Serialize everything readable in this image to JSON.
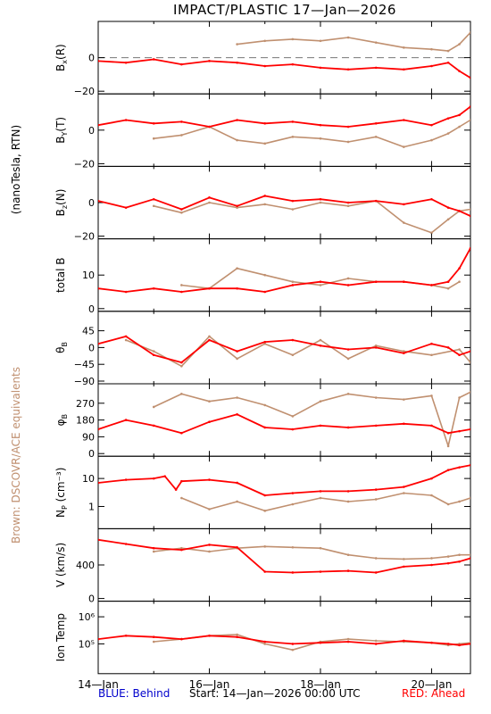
{
  "title": "IMPACT/PLASTIC   17—Jan—2026",
  "colors": {
    "ahead": "#ff0000",
    "equivalent": "#c09070",
    "behind": "#0000cc",
    "frame": "#000000"
  },
  "side_labels": {
    "units": "(nanoTesla, RTN)",
    "brown": "Brown: DSCOVR/ACE equivalents"
  },
  "footer": {
    "behind": "BLUE: Behind",
    "start": "Start: 14—Jan—2026 00:00 UTC",
    "ahead": "RED: Ahead"
  },
  "chart_data": {
    "type": "line",
    "x_tick_labels": [
      "14—Jan",
      "16—Jan",
      "18—Jan",
      "20—Jan"
    ],
    "x_range_days": [
      0,
      6.7
    ],
    "panels": [
      {
        "ylabel": "Bx(R)",
        "ylabel_main": "B",
        "ylabel_sub": "x",
        "ylabel_tail": "(R)",
        "ylim": [
          -20,
          20
        ],
        "scale": "linear",
        "ticks": [
          {
            "v": 0,
            "label": "0"
          },
          {
            "v": -20,
            "label": "−20"
          }
        ],
        "zero_line": true,
        "series": [
          {
            "color": "ahead",
            "x": [
              0,
              0.5,
              1,
              1.5,
              2,
              2.5,
              3,
              3.5,
              4,
              4.5,
              5,
              5.5,
              6,
              6.3,
              6.5,
              6.7
            ],
            "y": [
              -2,
              -3,
              -1,
              -4,
              -2,
              -3,
              -5,
              -4,
              -6,
              -7,
              -6,
              -7,
              -5,
              -3,
              -8,
              -12
            ]
          },
          {
            "color": "equivalent",
            "x": [
              2.5,
              3,
              3.5,
              4,
              4.5,
              5,
              5.5,
              6,
              6.3,
              6.5,
              6.7
            ],
            "y": [
              8,
              10,
              11,
              10,
              12,
              9,
              6,
              5,
              4,
              8,
              15
            ]
          }
        ]
      },
      {
        "ylabel": "By(T)",
        "ylabel_main": "B",
        "ylabel_sub": "Y",
        "ylabel_tail": "(T)",
        "ylim": [
          -20,
          20
        ],
        "scale": "linear",
        "ticks": [
          {
            "v": 0,
            "label": "0"
          },
          {
            "v": -20,
            "label": "−20"
          }
        ],
        "series": [
          {
            "color": "ahead",
            "x": [
              0,
              0.5,
              1,
              1.5,
              2,
              2.5,
              3,
              3.5,
              4,
              4.5,
              5,
              5.5,
              6,
              6.3,
              6.5,
              6.7
            ],
            "y": [
              3,
              6,
              4,
              5,
              2,
              6,
              4,
              5,
              3,
              2,
              4,
              6,
              3,
              7,
              9,
              14
            ]
          },
          {
            "color": "equivalent",
            "x": [
              1,
              1.5,
              2,
              2.5,
              3,
              3.5,
              4,
              4.5,
              5,
              5.5,
              6,
              6.3,
              6.5,
              6.7
            ],
            "y": [
              -5,
              -3,
              2,
              -6,
              -8,
              -4,
              -5,
              -7,
              -4,
              -10,
              -6,
              -2,
              2,
              6
            ]
          }
        ]
      },
      {
        "ylabel": "Bz(N)",
        "ylabel_main": "B",
        "ylabel_sub": "z",
        "ylabel_tail": "(N)",
        "ylim": [
          -20,
          20
        ],
        "scale": "linear",
        "ticks": [
          {
            "v": 0,
            "label": "0"
          },
          {
            "v": -20,
            "label": "−20"
          }
        ],
        "series": [
          {
            "color": "ahead",
            "x": [
              0,
              0.5,
              1,
              1.5,
              2,
              2.5,
              3,
              3.5,
              4,
              4.5,
              5,
              5.5,
              6,
              6.3,
              6.5,
              6.7
            ],
            "y": [
              1,
              -3,
              2,
              -4,
              3,
              -2,
              4,
              1,
              2,
              0,
              1,
              -1,
              2,
              -3,
              -5,
              -8
            ]
          },
          {
            "color": "equivalent",
            "x": [
              1,
              1.5,
              2,
              2.5,
              3,
              3.5,
              4,
              4.5,
              5,
              5.5,
              6,
              6.3,
              6.5,
              6.7
            ],
            "y": [
              -2,
              -6,
              0,
              -3,
              -1,
              -4,
              0,
              -2,
              1,
              -12,
              -18,
              -10,
              -5,
              -4
            ]
          }
        ]
      },
      {
        "ylabel": "total B",
        "ylim": [
          0,
          20
        ],
        "scale": "linear",
        "ticks": [
          {
            "v": 10,
            "label": "10"
          },
          {
            "v": 0,
            "label": "0"
          }
        ],
        "series": [
          {
            "color": "ahead",
            "x": [
              0,
              0.5,
              1,
              1.5,
              2,
              2.5,
              3,
              3.5,
              4,
              4.5,
              5,
              5.5,
              6,
              6.3,
              6.5,
              6.7
            ],
            "y": [
              6,
              5,
              6,
              5,
              6,
              6,
              5,
              7,
              8,
              7,
              8,
              8,
              7,
              8,
              12,
              18
            ]
          },
          {
            "color": "equivalent",
            "x": [
              1.5,
              2,
              2.5,
              3,
              3.5,
              4,
              4.5,
              5,
              5.5,
              6,
              6.3,
              6.5
            ],
            "y": [
              7,
              6,
              12,
              10,
              8,
              7,
              9,
              8,
              8,
              7,
              6,
              8
            ]
          }
        ]
      },
      {
        "ylabel": "θB",
        "ylabel_main": "θ",
        "ylabel_sub": "B",
        "ylabel_tail": "",
        "ylim": [
          -90,
          90
        ],
        "scale": "linear",
        "ticks": [
          {
            "v": 45,
            "label": "45"
          },
          {
            "v": 0,
            "label": "0"
          },
          {
            "v": -45,
            "label": "−45"
          },
          {
            "v": -90,
            "label": "−90"
          }
        ],
        "series": [
          {
            "color": "ahead",
            "x": [
              0,
              0.5,
              1,
              1.5,
              2,
              2.5,
              3,
              3.5,
              4,
              4.5,
              5,
              5.5,
              6,
              6.3,
              6.5,
              6.7
            ],
            "y": [
              10,
              30,
              -20,
              -40,
              20,
              -10,
              15,
              20,
              5,
              -5,
              0,
              -15,
              10,
              0,
              -20,
              -10
            ]
          },
          {
            "color": "equivalent",
            "x": [
              0.5,
              1,
              1.5,
              2,
              2.5,
              3,
              3.5,
              4,
              4.5,
              5,
              5.5,
              6,
              6.5,
              6.7
            ],
            "y": [
              20,
              -10,
              -50,
              30,
              -30,
              10,
              -20,
              20,
              -30,
              5,
              -10,
              -20,
              -5,
              -40
            ]
          }
        ]
      },
      {
        "ylabel": "φB",
        "ylabel_main": "φ",
        "ylabel_sub": "B",
        "ylabel_tail": "",
        "ylim": [
          0,
          360
        ],
        "scale": "linear",
        "ticks": [
          {
            "v": 270,
            "label": "270"
          },
          {
            "v": 180,
            "label": "180"
          },
          {
            "v": 90,
            "label": "90"
          },
          {
            "v": 0,
            "label": "0"
          }
        ],
        "series": [
          {
            "color": "ahead",
            "x": [
              0,
              0.5,
              1,
              1.5,
              2,
              2.5,
              3,
              3.5,
              4,
              4.5,
              5,
              5.5,
              6,
              6.3,
              6.5,
              6.7
            ],
            "y": [
              130,
              180,
              150,
              110,
              170,
              210,
              140,
              130,
              150,
              140,
              150,
              160,
              150,
              110,
              120,
              130
            ]
          },
          {
            "color": "equivalent",
            "x": [
              1,
              1.5,
              2,
              2.5,
              3,
              3.5,
              4,
              4.5,
              5,
              5.5,
              6,
              6.3,
              6.5,
              6.7
            ],
            "y": [
              250,
              320,
              280,
              300,
              260,
              200,
              280,
              320,
              300,
              290,
              310,
              40,
              300,
              330
            ]
          }
        ]
      },
      {
        "ylabel": "Np (cm⁻³)",
        "ylabel_main": "N",
        "ylabel_sub": "P",
        "ylabel_tail": " (cm⁻³)",
        "ylim": [
          0.2,
          50
        ],
        "scale": "log",
        "ticks": [
          {
            "v": 10,
            "label": "10"
          },
          {
            "v": 1,
            "label": "1"
          }
        ],
        "series": [
          {
            "color": "ahead",
            "x": [
              0,
              0.5,
              1,
              1.2,
              1.4,
              1.5,
              2,
              2.5,
              3,
              3.5,
              4,
              4.5,
              5,
              5.5,
              6,
              6.3,
              6.5,
              6.7
            ],
            "y": [
              7,
              9,
              10,
              12,
              4,
              8,
              9,
              7,
              2.5,
              3,
              3.5,
              3.5,
              4,
              5,
              10,
              20,
              25,
              30
            ]
          },
          {
            "color": "equivalent",
            "x": [
              1.5,
              2,
              2.5,
              3,
              3.5,
              4,
              4.5,
              5,
              5.5,
              6,
              6.3,
              6.5,
              6.7
            ],
            "y": [
              2,
              0.8,
              1.5,
              0.7,
              1.2,
              2,
              1.5,
              1.8,
              3,
              2.5,
              1.2,
              1.5,
              2
            ]
          }
        ]
      },
      {
        "ylabel": "V (km/s)",
        "ylim": [
          0,
          800
        ],
        "scale": "linear",
        "ticks": [
          {
            "v": 400,
            "label": "400"
          },
          {
            "v": 0,
            "label": "0"
          }
        ],
        "series": [
          {
            "color": "ahead",
            "x": [
              0,
              0.5,
              1,
              1.5,
              2,
              2.5,
              3,
              3.5,
              4,
              4.5,
              5,
              5.5,
              6,
              6.3,
              6.5,
              6.7
            ],
            "y": [
              700,
              650,
              600,
              580,
              640,
              610,
              320,
              310,
              320,
              330,
              310,
              380,
              400,
              420,
              440,
              480
            ]
          },
          {
            "color": "equivalent",
            "x": [
              1,
              1.5,
              2,
              2.5,
              3,
              3.5,
              4,
              4.5,
              5,
              5.5,
              6,
              6.3,
              6.5,
              6.7
            ],
            "y": [
              560,
              600,
              560,
              600,
              620,
              610,
              600,
              520,
              480,
              470,
              480,
              500,
              520,
              520
            ]
          }
        ]
      },
      {
        "ylabel": "Ion Temp",
        "ylim": [
          10000,
          3000000
        ],
        "scale": "log",
        "ticks": [
          {
            "v": 1000000,
            "label": "10⁶"
          },
          {
            "v": 100000,
            "label": "10⁵"
          }
        ],
        "series": [
          {
            "color": "ahead",
            "x": [
              0,
              0.5,
              1,
              1.5,
              2,
              2.5,
              3,
              3.5,
              4,
              4.5,
              5,
              5.5,
              6,
              6.3,
              6.5,
              6.7
            ],
            "y": [
              150000,
              200000,
              180000,
              150000,
              200000,
              180000,
              120000,
              100000,
              110000,
              120000,
              100000,
              130000,
              110000,
              100000,
              90000,
              100000
            ]
          },
          {
            "color": "equivalent",
            "x": [
              1,
              1.5,
              2,
              2.5,
              3,
              3.5,
              4,
              4.5,
              5,
              5.5,
              6,
              6.3,
              6.5,
              6.7
            ],
            "y": [
              120000,
              150000,
              200000,
              220000,
              100000,
              60000,
              120000,
              150000,
              130000,
              120000,
              110000,
              90000,
              100000,
              110000
            ]
          }
        ]
      }
    ]
  }
}
